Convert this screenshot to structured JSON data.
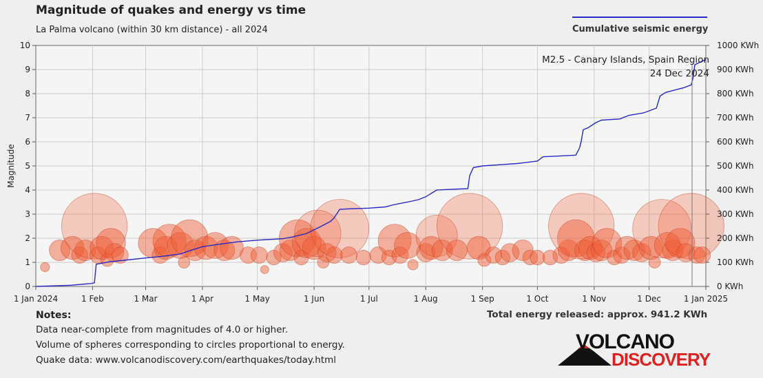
{
  "header": {
    "title": "Magnitude of quakes and energy vs time",
    "subtitle": "La Palma volcano (within 30 km distance) - all 2024",
    "legend_label": "Cumulative seismic energy"
  },
  "annotation": {
    "line1": "M2.5 - Canary Islands, Spain Region",
    "line2": "24 Dec 2024"
  },
  "footer": {
    "notes_heading": "Notes:",
    "notes": [
      "Data near-complete from magnitudes of 4.0 or higher.",
      "Volume of spheres corresponding to circles proportional to energy.",
      "Quake data: www.volcanodiscovery.com/earthquakes/today.html"
    ],
    "total_energy": "Total energy released: approx. 941.2 KWh"
  },
  "logo": {
    "top": "VOLCANO",
    "bottom": "DISCOVERY"
  },
  "colors": {
    "energy_line": "#2828c8",
    "bubble_fill": "#f05a32",
    "bubble_stroke": "#c04020",
    "plot_background": "#f5f5f5",
    "grid": "#cccccc"
  },
  "chart_data": {
    "type": "scatter",
    "ylabel": "Magnitude",
    "ylim": [
      0,
      10
    ],
    "y_ticks": [
      "0",
      "1",
      "2",
      "3",
      "4",
      "5",
      "6",
      "7",
      "8",
      "9",
      "10"
    ],
    "y2lim": [
      0,
      1000
    ],
    "y2_ticks": [
      "0 KWh",
      "100 KWh",
      "200 KWh",
      "300 KWh",
      "400 KWh",
      "500 KWh",
      "600 KWh",
      "700 KWh",
      "800 KWh",
      "900 KWh",
      "1000 KWh"
    ],
    "xlim": [
      "2024-01-01",
      "2025-01-01"
    ],
    "x_ticks": [
      {
        "date": "2024-01-01",
        "label": "1 Jan 2024"
      },
      {
        "date": "2024-02-01",
        "label": "1 Feb"
      },
      {
        "date": "2024-03-01",
        "label": "1 Mar"
      },
      {
        "date": "2024-04-01",
        "label": "1 Apr"
      },
      {
        "date": "2024-05-01",
        "label": "1 May"
      },
      {
        "date": "2024-06-01",
        "label": "1 Jun"
      },
      {
        "date": "2024-07-01",
        "label": "1 Jul"
      },
      {
        "date": "2024-08-01",
        "label": "1 Aug"
      },
      {
        "date": "2024-09-01",
        "label": "1 Sep"
      },
      {
        "date": "2024-10-01",
        "label": "1 Oct"
      },
      {
        "date": "2024-11-01",
        "label": "1 Nov"
      },
      {
        "date": "2024-12-01",
        "label": "1 Dec"
      },
      {
        "date": "2025-01-01",
        "label": "1 Jan 2025"
      }
    ],
    "grid": true,
    "legend_position": "top-right",
    "series": [
      {
        "name": "Cumulative seismic energy",
        "type": "line",
        "axis": "right",
        "points": [
          [
            "2024-01-01",
            0
          ],
          [
            "2024-01-20",
            5
          ],
          [
            "2024-01-31",
            12
          ],
          [
            "2024-02-02",
            15
          ],
          [
            "2024-02-03",
            92
          ],
          [
            "2024-02-10",
            102
          ],
          [
            "2024-02-20",
            110
          ],
          [
            "2024-03-01",
            118
          ],
          [
            "2024-03-10",
            125
          ],
          [
            "2024-03-20",
            135
          ],
          [
            "2024-03-25",
            148
          ],
          [
            "2024-04-01",
            165
          ],
          [
            "2024-04-10",
            175
          ],
          [
            "2024-04-20",
            185
          ],
          [
            "2024-05-01",
            192
          ],
          [
            "2024-05-15",
            198
          ],
          [
            "2024-05-20",
            205
          ],
          [
            "2024-05-28",
            220
          ],
          [
            "2024-06-01",
            235
          ],
          [
            "2024-06-05",
            250
          ],
          [
            "2024-06-10",
            270
          ],
          [
            "2024-06-12",
            285
          ],
          [
            "2024-06-15",
            320
          ],
          [
            "2024-06-20",
            322
          ],
          [
            "2024-07-01",
            325
          ],
          [
            "2024-07-10",
            330
          ],
          [
            "2024-07-15",
            340
          ],
          [
            "2024-07-22",
            350
          ],
          [
            "2024-07-28",
            360
          ],
          [
            "2024-08-01",
            372
          ],
          [
            "2024-08-07",
            400
          ],
          [
            "2024-08-15",
            403
          ],
          [
            "2024-08-24",
            406
          ],
          [
            "2024-08-25",
            460
          ],
          [
            "2024-08-27",
            493
          ],
          [
            "2024-09-01",
            500
          ],
          [
            "2024-09-10",
            505
          ],
          [
            "2024-09-20",
            510
          ],
          [
            "2024-10-01",
            520
          ],
          [
            "2024-10-04",
            538
          ],
          [
            "2024-10-15",
            542
          ],
          [
            "2024-10-22",
            545
          ],
          [
            "2024-10-24",
            575
          ],
          [
            "2024-10-25",
            605
          ],
          [
            "2024-10-26",
            650
          ],
          [
            "2024-10-29",
            660
          ],
          [
            "2024-11-02",
            680
          ],
          [
            "2024-11-05",
            690
          ],
          [
            "2024-11-15",
            695
          ],
          [
            "2024-11-20",
            710
          ],
          [
            "2024-11-28",
            720
          ],
          [
            "2024-12-05",
            740
          ],
          [
            "2024-12-07",
            790
          ],
          [
            "2024-12-10",
            805
          ],
          [
            "2024-12-15",
            815
          ],
          [
            "2024-12-20",
            825
          ],
          [
            "2024-12-24",
            836
          ],
          [
            "2024-12-25",
            865
          ],
          [
            "2024-12-26",
            920
          ],
          [
            "2024-12-30",
            935
          ],
          [
            "2025-01-01",
            941.2
          ]
        ]
      },
      {
        "name": "Quakes",
        "type": "bubble",
        "axis": "left",
        "points": [
          [
            "2024-01-06",
            0.8
          ],
          [
            "2024-01-14",
            1.5
          ],
          [
            "2024-01-21",
            1.6
          ],
          [
            "2024-01-25",
            1.3
          ],
          [
            "2024-01-28",
            1.5
          ],
          [
            "2024-02-02",
            2.5
          ],
          [
            "2024-02-04",
            1.3
          ],
          [
            "2024-02-06",
            1.6
          ],
          [
            "2024-02-09",
            1.1
          ],
          [
            "2024-02-11",
            1.8
          ],
          [
            "2024-02-13",
            1.4
          ],
          [
            "2024-02-16",
            1.3
          ],
          [
            "2024-03-05",
            1.8
          ],
          [
            "2024-03-09",
            1.3
          ],
          [
            "2024-03-12",
            1.6
          ],
          [
            "2024-03-14",
            1.9
          ],
          [
            "2024-03-20",
            1.7
          ],
          [
            "2024-03-22",
            1.0
          ],
          [
            "2024-03-25",
            2.0
          ],
          [
            "2024-03-28",
            1.5
          ],
          [
            "2024-04-03",
            1.6
          ],
          [
            "2024-04-08",
            1.7
          ],
          [
            "2024-04-13",
            1.5
          ],
          [
            "2024-04-17",
            1.6
          ],
          [
            "2024-04-26",
            1.3
          ],
          [
            "2024-05-02",
            1.3
          ],
          [
            "2024-05-05",
            0.7
          ],
          [
            "2024-05-10",
            1.2
          ],
          [
            "2024-05-15",
            1.4
          ],
          [
            "2024-05-19",
            1.5
          ],
          [
            "2024-05-23",
            2.0
          ],
          [
            "2024-05-25",
            1.2
          ],
          [
            "2024-05-28",
            1.8
          ],
          [
            "2024-06-01",
            1.6
          ],
          [
            "2024-06-03",
            2.2
          ],
          [
            "2024-06-06",
            1.0
          ],
          [
            "2024-06-08",
            1.4
          ],
          [
            "2024-06-12",
            1.3
          ],
          [
            "2024-06-15",
            2.4
          ],
          [
            "2024-06-20",
            1.3
          ],
          [
            "2024-06-28",
            1.2
          ],
          [
            "2024-07-06",
            1.3
          ],
          [
            "2024-07-12",
            1.2
          ],
          [
            "2024-07-15",
            1.9
          ],
          [
            "2024-07-18",
            1.3
          ],
          [
            "2024-07-22",
            1.7
          ],
          [
            "2024-07-25",
            0.9
          ],
          [
            "2024-08-01",
            1.4
          ],
          [
            "2024-08-04",
            1.6
          ],
          [
            "2024-08-07",
            2.1
          ],
          [
            "2024-08-10",
            1.5
          ],
          [
            "2024-08-18",
            1.5
          ],
          [
            "2024-08-25",
            2.5
          ],
          [
            "2024-08-30",
            1.6
          ],
          [
            "2024-09-02",
            1.1
          ],
          [
            "2024-09-07",
            1.3
          ],
          [
            "2024-09-12",
            1.2
          ],
          [
            "2024-09-16",
            1.4
          ],
          [
            "2024-09-23",
            1.5
          ],
          [
            "2024-09-27",
            1.2
          ],
          [
            "2024-10-01",
            1.2
          ],
          [
            "2024-10-08",
            1.2
          ],
          [
            "2024-10-14",
            1.3
          ],
          [
            "2024-10-18",
            1.5
          ],
          [
            "2024-10-22",
            2.0
          ],
          [
            "2024-10-25",
            2.5
          ],
          [
            "2024-10-27",
            1.5
          ],
          [
            "2024-10-30",
            1.6
          ],
          [
            "2024-11-02",
            1.4
          ],
          [
            "2024-11-05",
            1.5
          ],
          [
            "2024-11-08",
            1.8
          ],
          [
            "2024-11-12",
            1.2
          ],
          [
            "2024-11-16",
            1.3
          ],
          [
            "2024-11-19",
            1.6
          ],
          [
            "2024-11-23",
            1.5
          ],
          [
            "2024-11-27",
            1.4
          ],
          [
            "2024-12-02",
            1.6
          ],
          [
            "2024-12-04",
            1.0
          ],
          [
            "2024-12-08",
            2.4
          ],
          [
            "2024-12-11",
            1.7
          ],
          [
            "2024-12-14",
            1.5
          ],
          [
            "2024-12-18",
            1.8
          ],
          [
            "2024-12-21",
            1.4
          ],
          [
            "2024-12-24",
            2.5
          ],
          [
            "2024-12-27",
            1.3
          ],
          [
            "2024-12-30",
            1.3
          ]
        ]
      }
    ]
  }
}
